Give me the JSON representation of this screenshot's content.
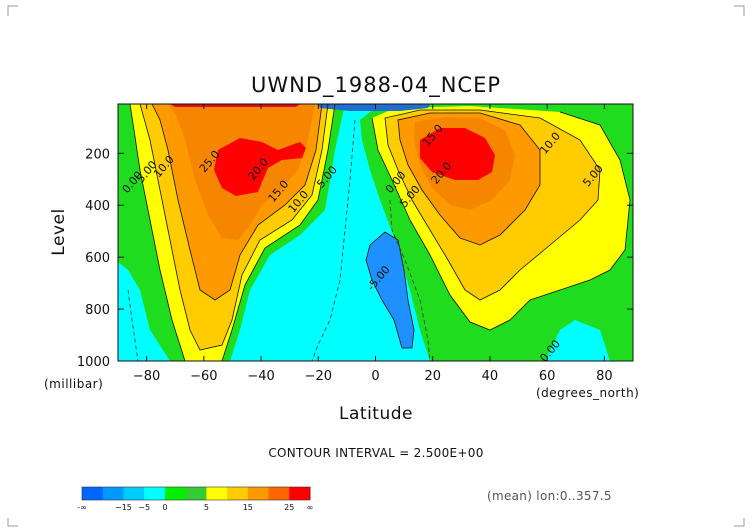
{
  "chart_data": {
    "type": "heatmap",
    "subtype": "filled-contour",
    "title": "UWND_1988-04_NCEP",
    "xlabel": "Latitude",
    "ylabel": "Level",
    "x_unit": "(degrees_north)",
    "y_unit": "(millibar)",
    "xlim": [
      -90,
      90
    ],
    "ylim": [
      1000,
      10
    ],
    "y_reversed": true,
    "x_ticks": [
      -80,
      -60,
      -40,
      -20,
      0,
      20,
      40,
      60,
      80
    ],
    "x_tick_labels": [
      "−80",
      "−60",
      "−40",
      "−20",
      "0",
      "20",
      "40",
      "60",
      "80"
    ],
    "y_ticks": [
      200,
      400,
      600,
      800,
      1000
    ],
    "y_tick_labels": [
      "200",
      "400",
      "600",
      "800",
      "1000"
    ],
    "contour_interval": "CONTOUR INTERVAL = 2.500E+00",
    "mean_note": "(mean) lon:0..357.5",
    "contour_labels": [
      {
        "text": "25.0",
        "lat": -57,
        "level": 240
      },
      {
        "text": "20.0",
        "lat": -40,
        "level": 270
      },
      {
        "text": "15.0",
        "lat": -33,
        "level": 355
      },
      {
        "text": "10.0",
        "lat": -26,
        "level": 395
      },
      {
        "text": "5.00",
        "lat": -16,
        "level": 300
      },
      {
        "text": "10.0",
        "lat": -73,
        "level": 260
      },
      {
        "text": "5.00",
        "lat": -79,
        "level": 280
      },
      {
        "text": "0.00",
        "lat": -84,
        "level": 320
      },
      {
        "text": "15.0",
        "lat": 21,
        "level": 140
      },
      {
        "text": "10.0",
        "lat": 62,
        "level": 170
      },
      {
        "text": "20.0",
        "lat": 24,
        "level": 285
      },
      {
        "text": "0.00",
        "lat": 8,
        "level": 320
      },
      {
        "text": "5.00",
        "lat": 13,
        "level": 375
      },
      {
        "text": "5.00",
        "lat": 77,
        "level": 295
      },
      {
        "text": "-5.00",
        "lat": 2,
        "level": 690
      },
      {
        "text": "0.00",
        "lat": 62,
        "level": 970
      }
    ],
    "jet_cores": [
      {
        "hemisphere": "south",
        "lat": -52,
        "level": 230,
        "max_value_range": "25+"
      },
      {
        "hemisphere": "north",
        "lat": 28,
        "level": 180,
        "max_value_range": "25+"
      }
    ],
    "colorbar": {
      "ticks": [
        "-∞",
        "−15",
        "−5",
        "0",
        "5",
        "15",
        "25",
        "∞"
      ],
      "colors": [
        "#0066ff",
        "#0099ff",
        "#00ccff",
        "#00ffff",
        "#00ee00",
        "#33cc33",
        "#ffff00",
        "#ffcc00",
        "#ff9900",
        "#ff6600",
        "#ff0000"
      ]
    },
    "colors": {
      "neg2": "#0080ff",
      "neg1": "#55ccff",
      "zero": "#00ffff",
      "p0": "#1fdc1f",
      "p5": "#ffff00",
      "p10": "#ffcc00",
      "p15": "#ff9900",
      "p20": "#ee7700",
      "p25": "#ff0000"
    }
  }
}
